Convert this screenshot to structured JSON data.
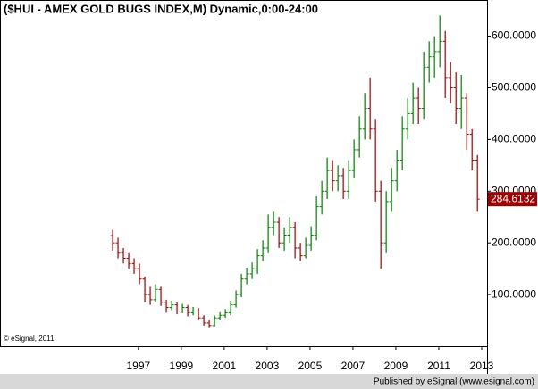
{
  "chart_data": {
    "type": "ohlc",
    "title": "($HUI - AMEX GOLD BUGS INDEX,M) Dynamic,0:00-24:00",
    "copyright": "© eSignal, 2011",
    "footer": "Published by eSignal (www.esignal.com)",
    "up_color": "#008000",
    "down_color": "#a00000",
    "last_price": 284.6132,
    "last_label_color": "#a00000",
    "grid": false,
    "xlim": [
      1990.55,
      2013.25
    ],
    "xticks": [
      1997,
      1999,
      2001,
      2003,
      2005,
      2007,
      2009,
      2011,
      2013
    ],
    "ylim": [
      0,
      670
    ],
    "yticks": [
      {
        "value": 100,
        "label": "100.0000"
      },
      {
        "value": 200,
        "label": "200.0000"
      },
      {
        "value": 300,
        "label": "300.0000"
      },
      {
        "value": 400,
        "label": "400.0000"
      },
      {
        "value": 500,
        "label": "500.0000"
      },
      {
        "value": 600,
        "label": "600.0000"
      }
    ],
    "x": [
      1995.8,
      1996.05,
      1996.3,
      1996.55,
      1996.8,
      1997.05,
      1997.3,
      1997.55,
      1997.8,
      1998.05,
      1998.3,
      1998.55,
      1998.8,
      1999.05,
      1999.3,
      1999.55,
      1999.8,
      2000.05,
      2000.3,
      2000.55,
      2000.8,
      2001.05,
      2001.3,
      2001.55,
      2001.8,
      2002.05,
      2002.3,
      2002.55,
      2002.8,
      2003.05,
      2003.3,
      2003.55,
      2003.8,
      2004.05,
      2004.3,
      2004.55,
      2004.8,
      2005.05,
      2005.3,
      2005.55,
      2005.8,
      2006.05,
      2006.3,
      2006.55,
      2006.8,
      2007.05,
      2007.3,
      2007.55,
      2007.8,
      2008.05,
      2008.3,
      2008.55,
      2008.8,
      2009.05,
      2009.3,
      2009.55,
      2009.8,
      2010.05,
      2010.3,
      2010.55,
      2010.8,
      2011.05,
      2011.3,
      2011.55,
      2011.8,
      2012.05,
      2012.3,
      2012.55,
      2012.8
    ],
    "open": [
      214,
      200,
      180,
      170,
      160,
      150,
      130,
      100,
      90,
      110,
      85,
      75,
      80,
      70,
      75,
      65,
      70,
      55,
      45,
      40,
      55,
      60,
      65,
      80,
      100,
      130,
      140,
      150,
      175,
      190,
      230,
      240,
      200,
      215,
      230,
      190,
      175,
      195,
      215,
      270,
      300,
      340,
      320,
      330,
      300,
      340,
      380,
      420,
      460,
      420,
      300,
      200,
      280,
      320,
      360,
      420,
      450,
      480,
      460,
      540,
      560,
      570,
      590,
      520,
      500,
      460,
      480,
      410,
      360
    ],
    "high": [
      225,
      210,
      190,
      180,
      170,
      160,
      135,
      115,
      120,
      115,
      90,
      88,
      85,
      82,
      80,
      76,
      74,
      60,
      50,
      60,
      66,
      72,
      88,
      108,
      140,
      152,
      162,
      188,
      205,
      255,
      260,
      250,
      230,
      250,
      240,
      200,
      210,
      232,
      290,
      320,
      365,
      360,
      350,
      345,
      360,
      400,
      445,
      490,
      520,
      440,
      320,
      300,
      345,
      380,
      445,
      480,
      510,
      500,
      570,
      590,
      600,
      640,
      610,
      550,
      530,
      525,
      490,
      420,
      370
    ],
    "low": [
      185,
      170,
      160,
      150,
      140,
      120,
      85,
      80,
      85,
      78,
      65,
      68,
      62,
      64,
      58,
      60,
      50,
      40,
      35,
      38,
      50,
      55,
      60,
      75,
      95,
      120,
      130,
      140,
      165,
      180,
      215,
      190,
      185,
      200,
      170,
      165,
      170,
      185,
      205,
      255,
      285,
      300,
      300,
      285,
      285,
      325,
      365,
      400,
      400,
      280,
      150,
      180,
      260,
      300,
      340,
      400,
      430,
      430,
      440,
      510,
      520,
      540,
      480,
      470,
      430,
      420,
      380,
      340,
      260
    ],
    "close": [
      200,
      180,
      170,
      160,
      150,
      130,
      100,
      90,
      110,
      85,
      75,
      80,
      70,
      75,
      65,
      70,
      55,
      45,
      40,
      55,
      60,
      65,
      80,
      100,
      130,
      140,
      150,
      175,
      190,
      230,
      240,
      200,
      215,
      230,
      190,
      175,
      195,
      215,
      270,
      300,
      340,
      320,
      330,
      300,
      340,
      380,
      420,
      460,
      420,
      300,
      200,
      280,
      320,
      360,
      420,
      450,
      480,
      460,
      540,
      560,
      570,
      590,
      520,
      500,
      460,
      480,
      410,
      360,
      284.6132
    ]
  }
}
